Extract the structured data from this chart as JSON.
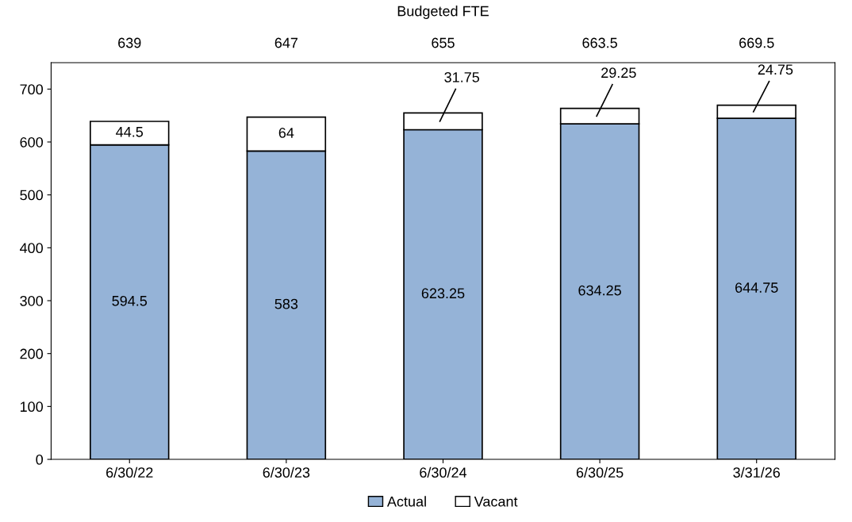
{
  "chart_data": {
    "type": "bar",
    "title": "Budgeted FTE",
    "stacked": true,
    "categories": [
      "6/30/22",
      "6/30/23",
      "6/30/24",
      "6/30/25",
      "3/31/26"
    ],
    "series": [
      {
        "name": "Actual",
        "color": "#95b3d7",
        "values": [
          594.5,
          583,
          623.25,
          634.25,
          644.75
        ]
      },
      {
        "name": "Vacant",
        "color": "#ffffff",
        "values": [
          44.5,
          64,
          31.75,
          29.25,
          24.75
        ]
      }
    ],
    "annotations": [
      "639",
      "647",
      "655",
      "663.5",
      "669.5"
    ],
    "data_labels": true,
    "ylim": [
      0,
      750
    ],
    "yticks": [
      0,
      100,
      200,
      300,
      400,
      500,
      600,
      700
    ],
    "grid": false,
    "legend": "bottom"
  }
}
